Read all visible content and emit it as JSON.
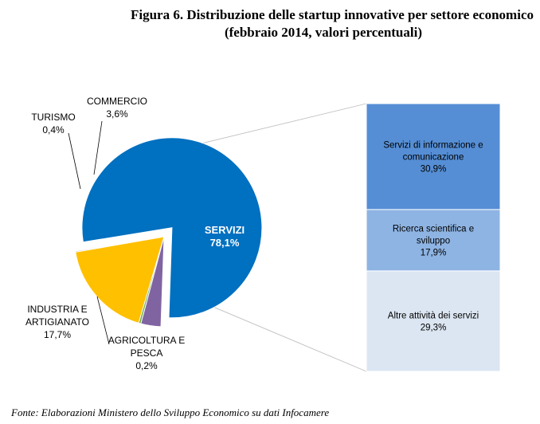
{
  "title": {
    "line1": "Figura 6. Distribuzione delle startup innovative per settore economico",
    "line2": "(febbraio 2014, valori percentuali)"
  },
  "source": "Fonte: Elaborazioni Ministero dello Sviluppo Economico su dati Infocamere",
  "chart_data": [
    {
      "type": "pie",
      "variant": "bar-of-pie",
      "slices": [
        {
          "label": "SERVIZI",
          "value": 78.1,
          "display": "78,1%",
          "color": "#0070C0"
        },
        {
          "label": "AGRICOLTURA E PESCA",
          "value": 0.2,
          "display": "0,2%",
          "color": "#A6A6A6"
        },
        {
          "label": "INDUSTRIA E ARTIGIANATO",
          "value": 17.7,
          "display": "17,7%",
          "color": "#FFC000"
        },
        {
          "label": "TURISMO",
          "value": 0.4,
          "display": "0,4%",
          "color": "#70AD47"
        },
        {
          "label": "COMMERCIO",
          "value": 3.6,
          "display": "3,6%",
          "color": "#8064A2"
        }
      ],
      "exploded_slice": "SERVIZI",
      "legend": "none"
    },
    {
      "type": "bar",
      "variant": "stacked-100",
      "segments": [
        {
          "label": "Servizi di informazione e comunicazione",
          "value": 30.9,
          "display": "30,9%",
          "color": "#558ED5"
        },
        {
          "label": "Ricerca scientifica e sviluppo",
          "value": 17.9,
          "display": "17,9%",
          "color": "#8EB4E3"
        },
        {
          "label": "Altre attività dei servizi",
          "value": 29.3,
          "display": "29,3%",
          "color": "#DCE6F2"
        }
      ]
    }
  ]
}
